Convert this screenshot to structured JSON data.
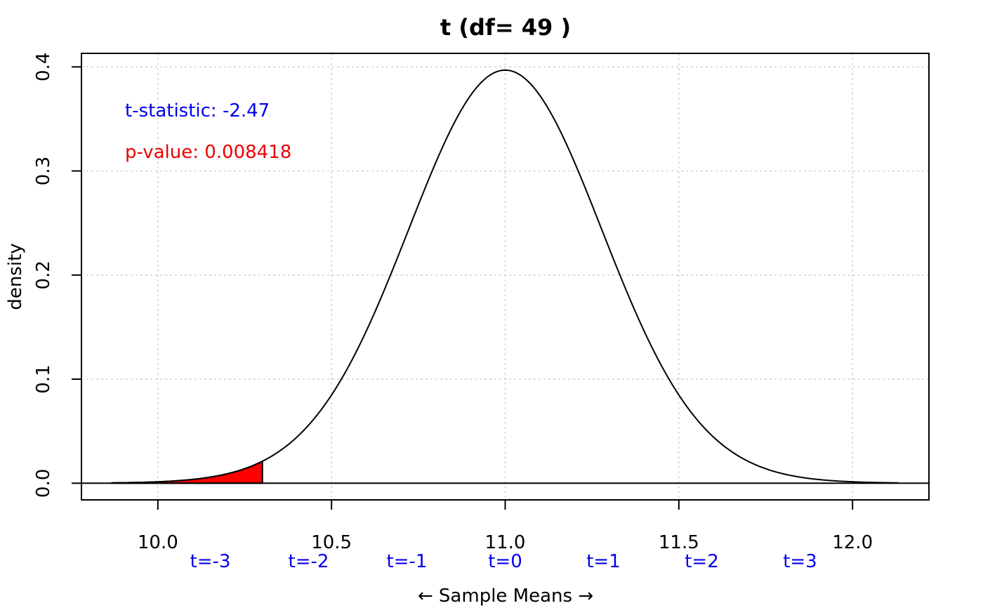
{
  "chart_data": {
    "type": "line",
    "title": "t (df= 49 )",
    "xlabel": "← Sample Means →",
    "ylabel": "density",
    "df": 49,
    "mean": 11.0,
    "standard_error": 0.283,
    "xlim": [
      9.78,
      12.22
    ],
    "ylim": [
      -0.016,
      0.413
    ],
    "x_ticks": [
      10.0,
      10.5,
      11.0,
      11.5,
      12.0
    ],
    "x_tick_labels": [
      "10.0",
      "10.5",
      "11.0",
      "11.5",
      "12.0"
    ],
    "y_ticks": [
      0.0,
      0.1,
      0.2,
      0.3,
      0.4
    ],
    "y_tick_labels": [
      "0.0",
      "0.1",
      "0.2",
      "0.3",
      "0.4"
    ],
    "curve_range": [
      9.868,
      12.132
    ],
    "t_labels": [
      {
        "t": -3,
        "label": "t=-3"
      },
      {
        "t": -2,
        "label": "t=-2"
      },
      {
        "t": -1,
        "label": "t=-1"
      },
      {
        "t": 0,
        "label": "t=0"
      },
      {
        "t": 1,
        "label": "t=1"
      },
      {
        "t": 2,
        "label": "t=2"
      },
      {
        "t": 3,
        "label": "t=3"
      }
    ],
    "shaded_region": {
      "from": 9.868,
      "to": 10.301,
      "color": "#ff0000"
    },
    "grid": true,
    "curve_color": "#000000",
    "t_label_color": "#0000ee",
    "annotations": [
      {
        "text": "t-statistic: -2.47",
        "color": "#0000ee"
      },
      {
        "text": "p-value: 0.008418",
        "color": "#ee0000"
      }
    ]
  }
}
